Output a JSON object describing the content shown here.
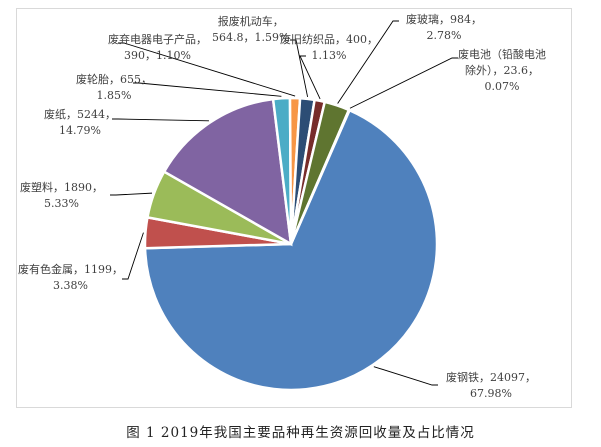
{
  "caption": "图 1   2019年我国主要品种再生资源回收量及占比情况",
  "chart_data": {
    "type": "pie",
    "title": "2019年我国主要品种再生资源回收量及占比情况",
    "figure_label": "图 1",
    "start_angle_deg": 23.6,
    "direction": "clockwise",
    "categories": [
      "废钢铁",
      "废有色金属",
      "废塑料",
      "废纸",
      "废轮胎",
      "废弃电器电子产品",
      "报废机动车",
      "废旧纺织品",
      "废玻璃",
      "废电池（铅酸电池除外）"
    ],
    "values": [
      24097,
      1199,
      1890,
      5244,
      655,
      390,
      564.8,
      400,
      984,
      23.6
    ],
    "percentages": [
      67.98,
      3.38,
      5.33,
      14.79,
      1.85,
      1.1,
      1.59,
      1.13,
      2.78,
      0.07
    ],
    "colors": [
      "#4f81bd",
      "#c0504d",
      "#9bbb59",
      "#8064a2",
      "#4bacc6",
      "#f79646",
      "#2c4d75",
      "#772c2a",
      "#5f7530",
      "#4f81bd"
    ],
    "data_labels": [
      {
        "line1": "废钢铁，24097，",
        "line2": "67.98%"
      },
      {
        "line1": "废有色金属，1199，",
        "line2": "3.38%"
      },
      {
        "line1": "废塑料，1890，",
        "line2": "5.33%"
      },
      {
        "line1": "废纸，5244，",
        "line2": "14.79%"
      },
      {
        "line1": "废轮胎，655，",
        "line2": "1.85%"
      },
      {
        "line1": "废弃电器电子产品，",
        "line2": "390，1.10%"
      },
      {
        "line1": "报废机动车，",
        "line2": "564.8，1.59%"
      },
      {
        "line1": "废旧纺织品，400，",
        "line2": "1.13%"
      },
      {
        "line1": "废玻璃，984，",
        "line2": "2.78%"
      },
      {
        "line1": "废电池（铅酸电池",
        "line2": "除外），23.6，",
        "line3": "0.07%"
      }
    ],
    "legend": "none"
  }
}
